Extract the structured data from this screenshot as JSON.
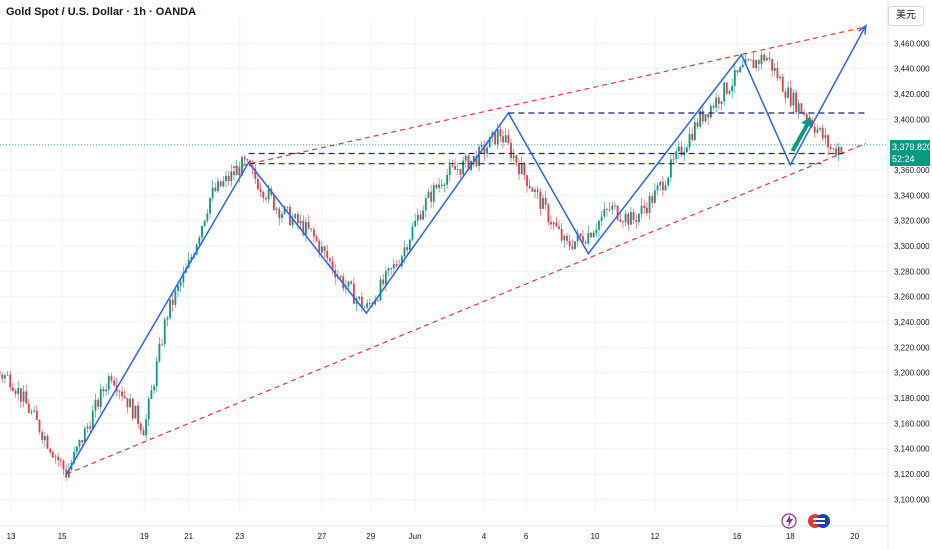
{
  "title": "Gold Spot / U.S. Dollar · 1h · OANDA",
  "currency_button": "美元",
  "current_price": {
    "value": "3,379.820",
    "countdown": "52:24"
  },
  "chart_data": {
    "type": "candlestick",
    "symbol": "Gold Spot / U.S. Dollar",
    "interval": "1h",
    "source": "OANDA",
    "ylim": [
      3090,
      3480
    ],
    "y_ticks": [
      "3,460.000",
      "3,440.000",
      "3,420.000",
      "3,400.000",
      "3,380.000",
      "3,360.000",
      "3,340.000",
      "3,320.000",
      "3,300.000",
      "3,280.000",
      "3,260.000",
      "3,240.000",
      "3,220.000",
      "3,200.000",
      "3,180.000",
      "3,160.000",
      "3,140.000",
      "3,120.000",
      "3,100.000"
    ],
    "x_ticks": [
      "13",
      "15",
      "19",
      "21",
      "23",
      "27",
      "29",
      "Jun",
      "4",
      "6",
      "10",
      "12",
      "16",
      "18",
      "20"
    ],
    "grid": true,
    "price_path": [
      {
        "x": 0,
        "y": 3230
      },
      {
        "x": 5,
        "y": 3245
      },
      {
        "x": 9,
        "y": 3225
      },
      {
        "x": 13,
        "y": 3195
      },
      {
        "x": 15.5,
        "y": 3120
      },
      {
        "x": 17.5,
        "y": 3200
      },
      {
        "x": 19,
        "y": 3155
      },
      {
        "x": 20,
        "y": 3245
      },
      {
        "x": 21,
        "y": 3285
      },
      {
        "x": 22,
        "y": 3340
      },
      {
        "x": 23.5,
        "y": 3365
      },
      {
        "x": 25,
        "y": 3330
      },
      {
        "x": 26.5,
        "y": 3310
      },
      {
        "x": 28,
        "y": 3270
      },
      {
        "x": 29,
        "y": 3250
      },
      {
        "x": 30.5,
        "y": 3290
      },
      {
        "x": 31.5,
        "y": 3330
      },
      {
        "x": 32.5,
        "y": 3355
      },
      {
        "x": 34,
        "y": 3370
      },
      {
        "x": 35,
        "y": 3390
      },
      {
        "x": 36,
        "y": 3360
      },
      {
        "x": 37,
        "y": 3330
      },
      {
        "x": 38,
        "y": 3300
      },
      {
        "x": 39,
        "y": 3310
      },
      {
        "x": 40,
        "y": 3330
      },
      {
        "x": 41,
        "y": 3320
      },
      {
        "x": 42,
        "y": 3340
      },
      {
        "x": 43,
        "y": 3370
      },
      {
        "x": 44,
        "y": 3400
      },
      {
        "x": 45,
        "y": 3420
      },
      {
        "x": 46,
        "y": 3440
      },
      {
        "x": 47,
        "y": 3450
      },
      {
        "x": 48,
        "y": 3420
      },
      {
        "x": 49,
        "y": 3400
      },
      {
        "x": 50,
        "y": 3375
      },
      {
        "x": 50.5,
        "y": 3380
      }
    ],
    "annotations": {
      "zigzag": [
        {
          "x": 15.5,
          "y": 3120
        },
        {
          "x": 23.7,
          "y": 3366
        },
        {
          "x": 29,
          "y": 3247
        },
        {
          "x": 35.4,
          "y": 3405
        },
        {
          "x": 39,
          "y": 3294
        },
        {
          "x": 45.9,
          "y": 3451
        },
        {
          "x": 48.1,
          "y": 3364
        },
        {
          "x": 51.5,
          "y": 3474
        }
      ],
      "channel_upper": [
        {
          "x": 23,
          "y": 3362
        },
        {
          "x": 51.5,
          "y": 3473
        }
      ],
      "channel_lower": [
        {
          "x": 15.5,
          "y": 3120
        },
        {
          "x": 51.5,
          "y": 3381
        }
      ],
      "resistance": {
        "y": 3405,
        "x_start": 35.4,
        "x_end": 51.5
      },
      "support_1": {
        "y": 3373,
        "x_start": 23.7,
        "x_end": 50.5
      },
      "support_2": {
        "y": 3365,
        "x_start": 23.7,
        "x_end": 49.5
      },
      "price_line": 3379.82,
      "up_arrow": {
        "from": {
          "x": 48.2,
          "y": 3375
        },
        "to": {
          "x": 49,
          "y": 3402
        }
      }
    }
  }
}
